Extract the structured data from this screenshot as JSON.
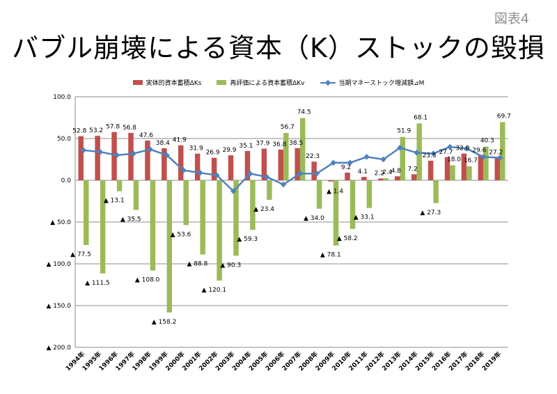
{
  "figure_label": "図表4",
  "title": "バブル崩壊による資本（K）ストックの毀損",
  "chart_data": {
    "type": "bar",
    "categories": [
      "1994年",
      "1995年",
      "1996年",
      "1997年",
      "1998年",
      "1999年",
      "2000年",
      "2001年",
      "2002年",
      "2003年",
      "2004年",
      "2005年",
      "2006年",
      "2007年",
      "2008年",
      "2009年",
      "2010年",
      "2011年",
      "2012年",
      "2013年",
      "2014年",
      "2015年",
      "2016年",
      "2017年",
      "2018年",
      "2019年"
    ],
    "series": [
      {
        "name": "実体的資本蓄積ΔKs",
        "type": "bar",
        "color": "#c0504d",
        "values": [
          52.8,
          53.2,
          57.8,
          56.8,
          47.6,
          38.4,
          41.9,
          31.9,
          26.9,
          29.9,
          35.1,
          37.9,
          36.8,
          38.5,
          22.3,
          -1.4,
          9.2,
          4.1,
          2.2,
          4.8,
          7.2,
          23.5,
          27.7,
          32.0,
          29.6,
          27.2
        ],
        "labels": [
          "52.8",
          "53.2",
          "57.8",
          "56.8",
          "47.6",
          "38.4",
          "41.9",
          "31.9",
          "26.9",
          "29.9",
          "35.1",
          "37.9",
          "36.8",
          "38.5",
          "22.3",
          "▲ 1.4",
          "9.2",
          "4.1",
          "2.2",
          "4.8",
          "7.2",
          "23.5",
          "27.7",
          "32.0",
          "29.6",
          "27.2"
        ]
      },
      {
        "name": "再評価による資本蓄積ΔKv",
        "type": "bar",
        "color": "#9bbb59",
        "values": [
          -77.5,
          -111.5,
          -13.1,
          -35.5,
          -108.0,
          -158.2,
          -53.6,
          -88.8,
          -120.1,
          -90.3,
          -59.3,
          -23.4,
          56.7,
          74.5,
          -34.0,
          -78.1,
          -58.2,
          -33.1,
          2.4,
          51.9,
          68.1,
          -27.3,
          18.0,
          16.7,
          40.3,
          69.7
        ],
        "labels": [
          "▲ 77.5",
          "▲ 111.5",
          "▲ 13.1",
          "▲ 35.5",
          "▲ 108.0",
          "▲ 158.2",
          "▲ 53.6",
          "▲ 88.8",
          "▲ 120.1",
          "▲ 90.3",
          "▲ 59.3",
          "▲ 23.4",
          "56.7",
          "74.5",
          "▲ 34.0",
          "▲ 78.1",
          "▲ 58.2",
          "▲ 33.1",
          "2.4",
          "51.9",
          "68.1",
          "▲ 27.3",
          "18.0",
          "16.7",
          "40.3",
          "69.7"
        ]
      },
      {
        "name": "当期マネーストック増減額⊿M",
        "type": "line",
        "color": "#4f81bd",
        "values": [
          36,
          34,
          30,
          32,
          37,
          30,
          12,
          9,
          6,
          -13,
          8,
          4,
          -5,
          8,
          8,
          21,
          21,
          28,
          25,
          39,
          33,
          32,
          40,
          38,
          28,
          27
        ]
      }
    ],
    "y_ticks": [
      100,
      50,
      0,
      -50,
      -100,
      -150,
      -200
    ],
    "y_tick_labels": [
      "100.0",
      "50.0",
      "0.0",
      "▲ 50.0",
      "▲ 100.0",
      "▲ 150.0",
      "▲ 200.0"
    ],
    "ylim": [
      -200,
      100
    ],
    "grid": true,
    "legend_position": "top"
  }
}
